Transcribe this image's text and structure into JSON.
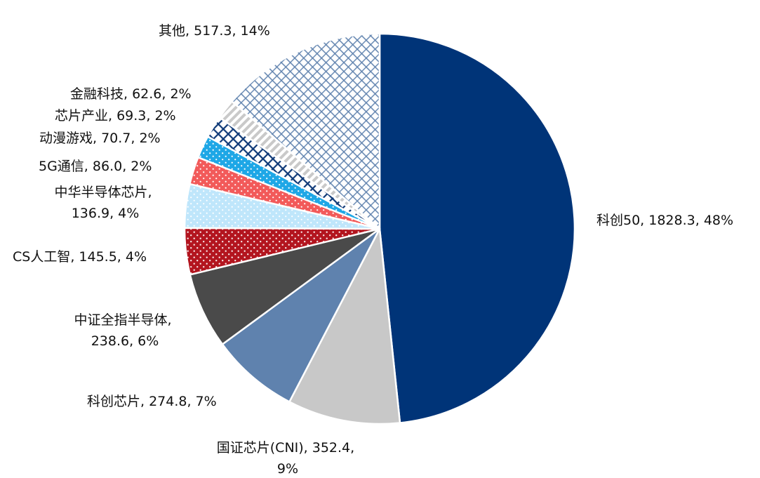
{
  "chart_data": {
    "type": "pie",
    "start_angle_deg": 0,
    "direction": "clockwise",
    "slices": [
      {
        "name": "科创50",
        "value": 1828.3,
        "percent": "48%",
        "label_lines": [
          "科创50, 1828.3, 48%"
        ],
        "color": "#003478",
        "pattern": "solid"
      },
      {
        "name": "国证芯片(CNI)",
        "value": 352.4,
        "percent": "9%",
        "label_lines": [
          "国证芯片(CNI), 352.4,",
          "9%"
        ],
        "color": "#c8c8c8",
        "pattern": "solid"
      },
      {
        "name": "科创芯片",
        "value": 274.8,
        "percent": "7%",
        "label_lines": [
          "科创芯片, 274.8, 7%"
        ],
        "color": "#5f82ae",
        "pattern": "solid"
      },
      {
        "name": "中证全指半导体",
        "value": 238.6,
        "percent": "6%",
        "label_lines": [
          "中证全指半导体,",
          "238.6, 6%"
        ],
        "color": "#4a4a4a",
        "pattern": "solid"
      },
      {
        "name": "CS人工智",
        "value": 145.5,
        "percent": "4%",
        "label_lines": [
          "CS人工智, 145.5, 4%"
        ],
        "color": "#b3151f",
        "pattern": "dots"
      },
      {
        "name": "中华半导体芯片",
        "value": 136.9,
        "percent": "4%",
        "label_lines": [
          "中华半导体芯片,",
          "136.9, 4%"
        ],
        "color": "#bfe6fb",
        "pattern": "dots"
      },
      {
        "name": "5G通信",
        "value": 86.0,
        "percent": "2%",
        "label_lines": [
          "5G通信, 86.0, 2%"
        ],
        "color": "#f25a5a",
        "pattern": "dots"
      },
      {
        "name": "动漫游戏",
        "value": 70.7,
        "percent": "2%",
        "label_lines": [
          "动漫游戏, 70.7, 2%"
        ],
        "color": "#1ea7e6",
        "pattern": "dots"
      },
      {
        "name": "芯片产业",
        "value": 69.3,
        "percent": "2%",
        "label_lines": [
          "芯片产业, 69.3, 2%"
        ],
        "color": "#0f3a78",
        "pattern": "crosshatch"
      },
      {
        "name": "金融科技",
        "value": 62.6,
        "percent": "2%",
        "label_lines": [
          "金融科技, 62.6, 2%"
        ],
        "color": "#c9c9c9",
        "pattern": "diagonal"
      },
      {
        "name": "其他",
        "value": 517.3,
        "percent": "14%",
        "label_lines": [
          "其他, 517.3, 14%"
        ],
        "color": "#5f82ae",
        "pattern": "grid"
      }
    ]
  }
}
